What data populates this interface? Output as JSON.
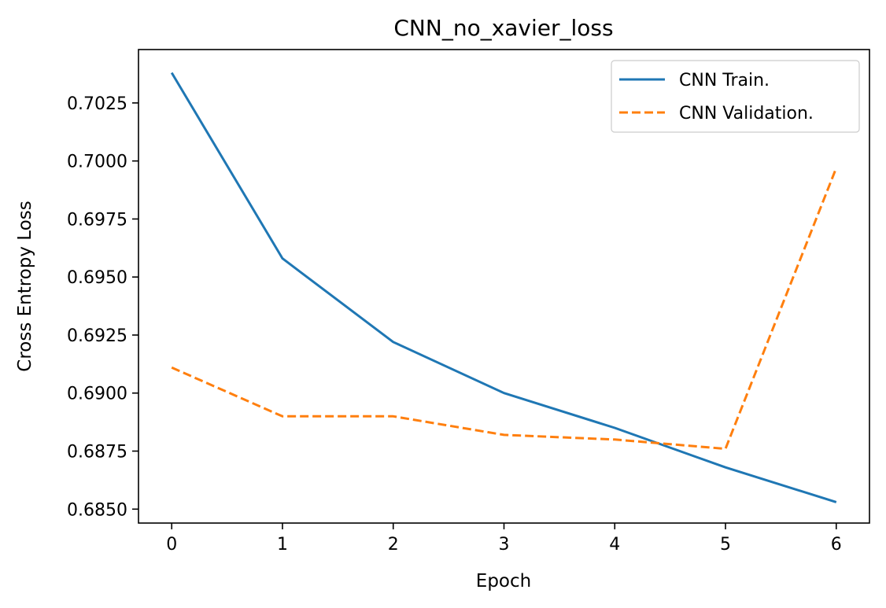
{
  "chart_data": {
    "type": "line",
    "title": "CNN_no_xavier_loss",
    "xlabel": "Epoch",
    "ylabel": "Cross Entropy Loss",
    "x": [
      0,
      1,
      2,
      3,
      4,
      5,
      6
    ],
    "xlim": [
      -0.3,
      6.3
    ],
    "ylim": [
      0.6844,
      0.7048
    ],
    "xticks": [
      0,
      1,
      2,
      3,
      4,
      5,
      6
    ],
    "yticks": [
      0.685,
      0.6875,
      0.69,
      0.6925,
      0.695,
      0.6975,
      0.7,
      0.7025
    ],
    "ytick_labels": [
      "0.6850",
      "0.6875",
      "0.6900",
      "0.6925",
      "0.6950",
      "0.6975",
      "0.7000",
      "0.7025"
    ],
    "grid": false,
    "legend_position": "top-right",
    "series": [
      {
        "name": "CNN Train.",
        "color": "#1f77b4",
        "style": "solid",
        "values": [
          0.7038,
          0.6958,
          0.6922,
          0.69,
          0.6885,
          0.6868,
          0.6853
        ]
      },
      {
        "name": "CNN Validation.",
        "color": "#ff7f0e",
        "style": "dashed",
        "values": [
          0.6911,
          0.689,
          0.689,
          0.6882,
          0.688,
          0.6876,
          0.6997
        ]
      }
    ]
  }
}
